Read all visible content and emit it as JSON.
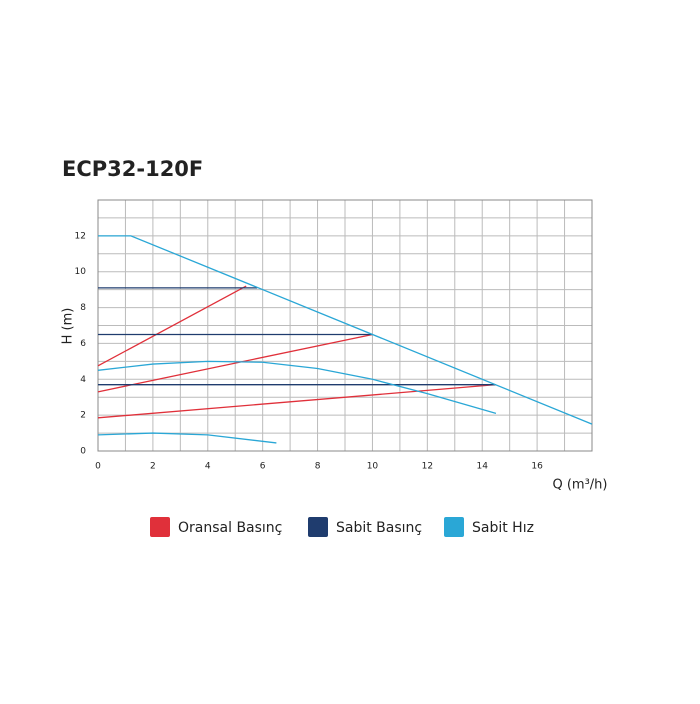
{
  "chart_data": {
    "type": "line",
    "title": "ECP32-120F",
    "xlabel": "Q (m³/h)",
    "ylabel": "H (m)",
    "xlim": [
      0,
      18
    ],
    "ylim": [
      0,
      14
    ],
    "xticks": [
      0,
      2,
      4,
      6,
      8,
      10,
      12,
      14,
      16
    ],
    "yticks": [
      0,
      2,
      4,
      6,
      8,
      10,
      12
    ],
    "xminor_ticks": [
      1,
      3,
      5,
      7,
      9,
      11,
      13,
      15,
      17
    ],
    "yminor_ticks": [
      1,
      3,
      5,
      7,
      9,
      11,
      13
    ],
    "grid": true,
    "series": [
      {
        "name": "Oransal Basınç",
        "color": "#e0303a",
        "curves": [
          {
            "x": [
              0,
              5.4
            ],
            "values": [
              4.75,
              9.2
            ]
          },
          {
            "x": [
              0,
              10
            ],
            "values": [
              3.3,
              6.5
            ]
          },
          {
            "x": [
              0,
              14.5
            ],
            "values": [
              1.85,
              3.7
            ]
          }
        ]
      },
      {
        "name": "Sabit Basınç",
        "color": "#1f3c6e",
        "curves": [
          {
            "x": [
              0,
              5.8
            ],
            "values": [
              9.1,
              9.1
            ]
          },
          {
            "x": [
              0,
              10
            ],
            "values": [
              6.5,
              6.5
            ]
          },
          {
            "x": [
              0,
              14.5
            ],
            "values": [
              3.7,
              3.7
            ]
          }
        ]
      },
      {
        "name": "Sabit Hız",
        "color": "#2aa7d6",
        "curves": [
          {
            "x": [
              0,
              1.2,
              18
            ],
            "values": [
              12,
              12,
              1.5
            ]
          },
          {
            "x": [
              0,
              2,
              4,
              6,
              8,
              10,
              12,
              14.5
            ],
            "values": [
              4.5,
              4.85,
              5,
              4.95,
              4.6,
              4,
              3.2,
              2.1
            ]
          },
          {
            "x": [
              0,
              2,
              4,
              6.5
            ],
            "values": [
              0.9,
              1.0,
              0.9,
              0.45
            ]
          }
        ]
      }
    ]
  }
}
